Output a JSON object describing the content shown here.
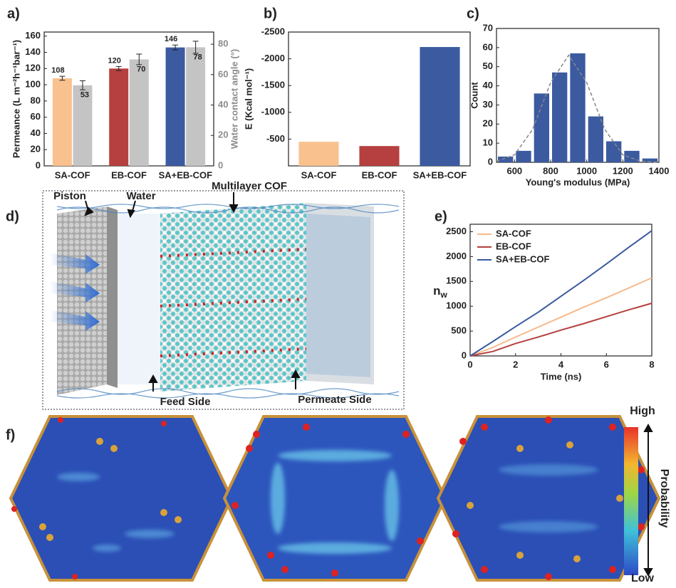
{
  "chart_data": [
    {
      "type": "bar2",
      "panel": "a)",
      "categories": [
        "SA-COF",
        "EB-COF",
        "SA+EB-COF"
      ],
      "ylabel": "Permeance (L m⁻²h⁻¹bar⁻¹)",
      "y2label": "Water contact angle (°)",
      "y2color": "#8c8c8c",
      "ylim": [
        0,
        165
      ],
      "yticks": [
        0,
        20,
        40,
        60,
        80,
        100,
        120,
        140,
        160
      ],
      "y2lim": [
        0,
        88
      ],
      "y2ticks": [
        0,
        20,
        40,
        60,
        80
      ],
      "series": [
        {
          "colors": [
            "#f9c18e",
            "#b5403f",
            "#3b5aa0"
          ],
          "values": [
            108,
            120,
            146
          ],
          "errors": [
            2.5,
            2.5,
            3
          ]
        },
        {
          "color": "#c4c4c4",
          "axis": "y2",
          "values": [
            53,
            70,
            78
          ],
          "errors": [
            3,
            3.5,
            4
          ]
        }
      ]
    },
    {
      "type": "bar",
      "panel": "b)",
      "categories": [
        "SA-COF",
        "EB-COF",
        "SA+EB-COF"
      ],
      "ylabel": "E (Kcal mol⁻¹)",
      "ylim": [
        0,
        -2500
      ],
      "yticks": [
        -2500,
        -2000,
        -1500,
        -1000,
        -500
      ],
      "colors": [
        "#f9c18e",
        "#b5403f",
        "#3b5aa0"
      ],
      "values": [
        -450,
        -370,
        -2220
      ]
    },
    {
      "type": "histogram",
      "panel": "c)",
      "xlabel": "Young's modulus (MPa)",
      "ylabel": "Count",
      "xlim": [
        500,
        1400
      ],
      "xticks": [
        600,
        800,
        1000,
        1200,
        1400
      ],
      "ylim": [
        0,
        70
      ],
      "yticks": [
        0,
        10,
        20,
        30,
        40,
        50,
        60,
        70
      ],
      "color": "#3b5aa0",
      "bins": [
        500,
        600,
        700,
        800,
        900,
        1000,
        1100,
        1200,
        1300,
        1400
      ],
      "counts": [
        3,
        6,
        36,
        47,
        57,
        24,
        11,
        6,
        2
      ],
      "fit": {
        "color": "#888888",
        "x": [
          500,
          600,
          700,
          800,
          900,
          1000,
          1100,
          1200,
          1300,
          1400
        ],
        "values": [
          0.5,
          3.9,
          17.2,
          41.7,
          56,
          41.7,
          17.2,
          3.9,
          0.5,
          0
        ]
      }
    },
    {
      "type": "line",
      "panel": "e)",
      "xlabel": "Time (ns)",
      "ylabel": "n",
      "ylabel_sub": "w",
      "xlim": [
        0,
        8
      ],
      "xticks": [
        0,
        2,
        4,
        6,
        8
      ],
      "ylim": [
        0,
        2650
      ],
      "yticks": [
        0,
        500,
        1000,
        1500,
        2000,
        2500
      ],
      "x": [
        0,
        1,
        2,
        3,
        4,
        5,
        6,
        7,
        8
      ],
      "series": [
        {
          "name": "SA-COF",
          "color": "#f7b98a",
          "values": [
            0,
            170,
            380,
            580,
            780,
            980,
            1170,
            1370,
            1570
          ]
        },
        {
          "name": "EB-COF",
          "color": "#b5403f",
          "values": [
            0,
            90,
            250,
            380,
            520,
            650,
            790,
            930,
            1060
          ]
        },
        {
          "name": "SA+EB-COF",
          "color": "#3b5aa0",
          "values": [
            0,
            290,
            590,
            880,
            1200,
            1520,
            1850,
            2190,
            2520
          ]
        }
      ]
    }
  ],
  "panel_d": {
    "letter": "d)",
    "piston": "Piston",
    "water": "Water",
    "membrane": "Multilayer COF",
    "feed": "Feed Side",
    "permeate": "Permeate Side"
  },
  "panel_f": {
    "letter": "f)",
    "high": "High",
    "low": "Low",
    "scale": "Probability"
  }
}
